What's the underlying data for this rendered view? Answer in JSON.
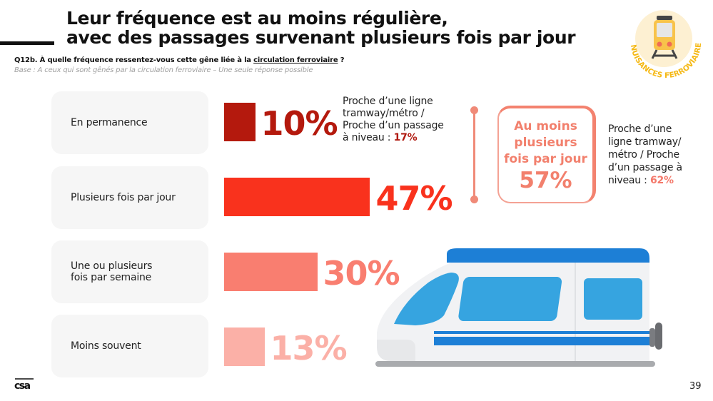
{
  "title": {
    "line1": "Leur fréquence est au moins régulière,",
    "line2": "avec des passages survenant plusieurs fois par jour"
  },
  "question": {
    "prefix": "Q12b. À quelle fréquence ressentez-vous cette gêne liée à la ",
    "underlined": "circulation ferroviaire",
    "suffix": " ?"
  },
  "base": "Base : A ceux qui sont gênés par la circulation ferroviaire – Une seule réponse possible",
  "badge": {
    "label": "NUISANCES FERROVIAIRES",
    "icon": "train-icon"
  },
  "chart_data": {
    "type": "bar",
    "orientation": "horizontal",
    "title": "À quelle fréquence ressentez-vous cette gêne liée à la circulation ferroviaire ?",
    "categories": [
      "En permanence",
      "Plusieurs fois par jour",
      "Une ou plusieurs\nfois par semaine",
      "Moins souvent"
    ],
    "values": [
      10,
      47,
      30,
      13
    ],
    "value_labels": [
      "10%",
      "47%",
      "30%",
      "13%"
    ],
    "colors": [
      "#b4190d",
      "#f9321d",
      "#f97e70",
      "#fbb0a7"
    ],
    "unit": "%",
    "xlim": [
      0,
      100
    ]
  },
  "notes": {
    "permanence": {
      "text": "Proche d’une ligne tramway/métro / Proche d’un passage à niveau : ",
      "lines": [
        "Proche d’une ligne",
        "tramway/métro /",
        "Proche d’un passage",
        "à niveau : "
      ],
      "value": "17%"
    },
    "summary_side": {
      "lines": [
        "Proche d’une",
        "ligne tramway/",
        "métro / Proche",
        "d’un passage à",
        "niveau : "
      ],
      "value": "62%"
    }
  },
  "summary": {
    "lines": [
      "Au moins",
      "plusieurs",
      "fois par jour"
    ],
    "value": "57%"
  },
  "footer": {
    "logo": "csa",
    "page": "39"
  }
}
